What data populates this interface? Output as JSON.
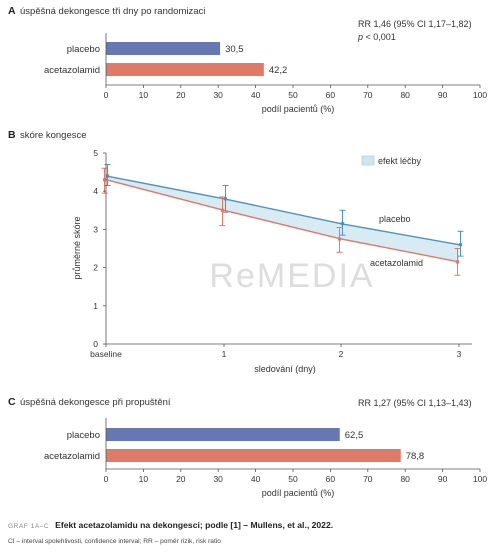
{
  "watermark": "ReMEDIA",
  "panels": {
    "a": {
      "letter": "A",
      "title": "úspěšná dekongesce tři dny po randomizaci",
      "stat1": "RR 1,46 (95% CI 1,17–1,82)",
      "stat2_p": "p",
      "stat2_rest": " < 0,001"
    },
    "b": {
      "letter": "B",
      "title": "skóre kongesce"
    },
    "c": {
      "letter": "C",
      "title": "úspěšná dekongesce při propuštění",
      "stat1": "RR 1,27 (95% CI 1,13–1,43)"
    }
  },
  "caption": {
    "label": "GRAF 1A–C",
    "text": "Efekt acetazolamidu na dekongesci; podle [1] – Mullens, et al., 2022.",
    "note": "CI – interval spolehlivosti, confidence interval; RR – poměr rizik, risk ratio"
  },
  "colors": {
    "placebo": "#6677b3",
    "acetazolamid": "#e07a68",
    "placebo_line": "#4d93bd",
    "band": "#cfe6ef",
    "axis": "#555555"
  },
  "chart_data": [
    {
      "type": "bar",
      "orientation": "horizontal",
      "categories": [
        "placebo",
        "acetazolamid"
      ],
      "values": [
        30.5,
        42.2
      ],
      "value_labels": [
        "30,5",
        "42,2"
      ],
      "xlabel": "podíl pacientů (%)",
      "xlim": [
        0,
        100
      ],
      "xticks": [
        "0",
        "10",
        "20",
        "30",
        "40",
        "50",
        "60",
        "70",
        "80",
        "90",
        "100"
      ]
    },
    {
      "type": "line",
      "x": [
        "baseline",
        "1",
        "2",
        "3"
      ],
      "ylabel": "průměrné skóre",
      "xlabel": "sledování (dny)",
      "ylim": [
        0,
        5
      ],
      "yticks": [
        "0",
        "1",
        "2",
        "3",
        "4",
        "5"
      ],
      "legend": {
        "band_label": "efekt léčby",
        "position": "top-right"
      },
      "series": [
        {
          "name": "placebo",
          "values": [
            4.4,
            3.8,
            3.15,
            2.6
          ],
          "ci_low": [
            4.15,
            3.45,
            2.85,
            2.3
          ],
          "ci_high": [
            4.7,
            4.15,
            3.5,
            2.95
          ]
        },
        {
          "name": "acetazolamid",
          "values": [
            4.3,
            3.5,
            2.75,
            2.15
          ],
          "ci_low": [
            3.95,
            3.1,
            2.4,
            1.8
          ],
          "ci_high": [
            4.6,
            3.85,
            3.05,
            2.5
          ]
        }
      ]
    },
    {
      "type": "bar",
      "orientation": "horizontal",
      "categories": [
        "placebo",
        "acetazolamid"
      ],
      "values": [
        62.5,
        78.8
      ],
      "value_labels": [
        "62,5",
        "78,8"
      ],
      "xlabel": "podíl pacientů (%)",
      "xlim": [
        0,
        100
      ],
      "xticks": [
        "0",
        "10",
        "20",
        "30",
        "40",
        "50",
        "60",
        "70",
        "80",
        "90",
        "100"
      ]
    }
  ]
}
